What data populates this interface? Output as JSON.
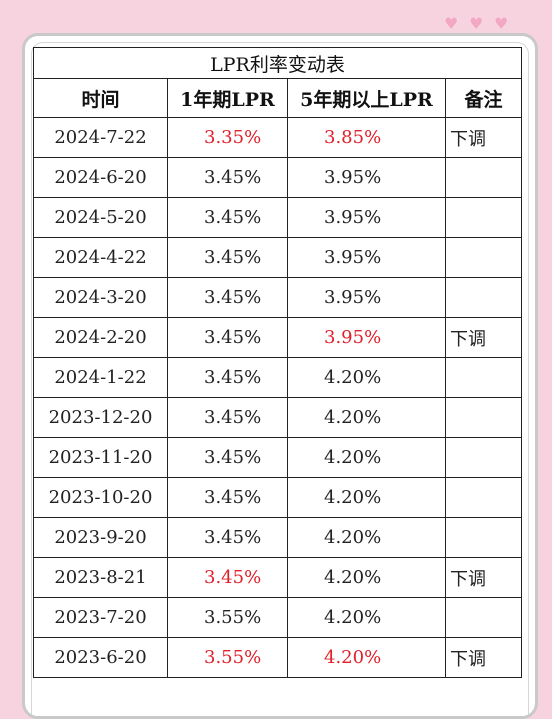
{
  "table": {
    "title": "LPR利率变动表",
    "headers": [
      "时间",
      "1年期LPR",
      "5年期以上LPR",
      "备注"
    ],
    "rows": [
      {
        "date": "2024-7-22",
        "lpr1": "3.35%",
        "lpr5": "3.85%",
        "note": "下调",
        "lpr1_red": true,
        "lpr5_red": true
      },
      {
        "date": "2024-6-20",
        "lpr1": "3.45%",
        "lpr5": "3.95%",
        "note": "",
        "lpr1_red": false,
        "lpr5_red": false
      },
      {
        "date": "2024-5-20",
        "lpr1": "3.45%",
        "lpr5": "3.95%",
        "note": "",
        "lpr1_red": false,
        "lpr5_red": false
      },
      {
        "date": "2024-4-22",
        "lpr1": "3.45%",
        "lpr5": "3.95%",
        "note": "",
        "lpr1_red": false,
        "lpr5_red": false
      },
      {
        "date": "2024-3-20",
        "lpr1": "3.45%",
        "lpr5": "3.95%",
        "note": "",
        "lpr1_red": false,
        "lpr5_red": false
      },
      {
        "date": "2024-2-20",
        "lpr1": "3.45%",
        "lpr5": "3.95%",
        "note": "下调",
        "lpr1_red": false,
        "lpr5_red": true
      },
      {
        "date": "2024-1-22",
        "lpr1": "3.45%",
        "lpr5": "4.20%",
        "note": "",
        "lpr1_red": false,
        "lpr5_red": false
      },
      {
        "date": "2023-12-20",
        "lpr1": "3.45%",
        "lpr5": "4.20%",
        "note": "",
        "lpr1_red": false,
        "lpr5_red": false
      },
      {
        "date": "2023-11-20",
        "lpr1": "3.45%",
        "lpr5": "4.20%",
        "note": "",
        "lpr1_red": false,
        "lpr5_red": false
      },
      {
        "date": "2023-10-20",
        "lpr1": "3.45%",
        "lpr5": "4.20%",
        "note": "",
        "lpr1_red": false,
        "lpr5_red": false
      },
      {
        "date": "2023-9-20",
        "lpr1": "3.45%",
        "lpr5": "4.20%",
        "note": "",
        "lpr1_red": false,
        "lpr5_red": false
      },
      {
        "date": "2023-8-21",
        "lpr1": "3.45%",
        "lpr5": "4.20%",
        "note": "下调",
        "lpr1_red": true,
        "lpr5_red": false
      },
      {
        "date": "2023-7-20",
        "lpr1": "3.55%",
        "lpr5": "4.20%",
        "note": "",
        "lpr1_red": false,
        "lpr5_red": false
      },
      {
        "date": "2023-6-20",
        "lpr1": "3.55%",
        "lpr5": "4.20%",
        "note": "下调",
        "lpr1_red": true,
        "lpr5_red": true
      }
    ]
  },
  "decoration": {
    "hearts": [
      "♥",
      "♥",
      "♥"
    ],
    "heart_color": "#f2a7c3",
    "highlight_color": "#e0202a",
    "background_color": "#f7d3e0"
  }
}
